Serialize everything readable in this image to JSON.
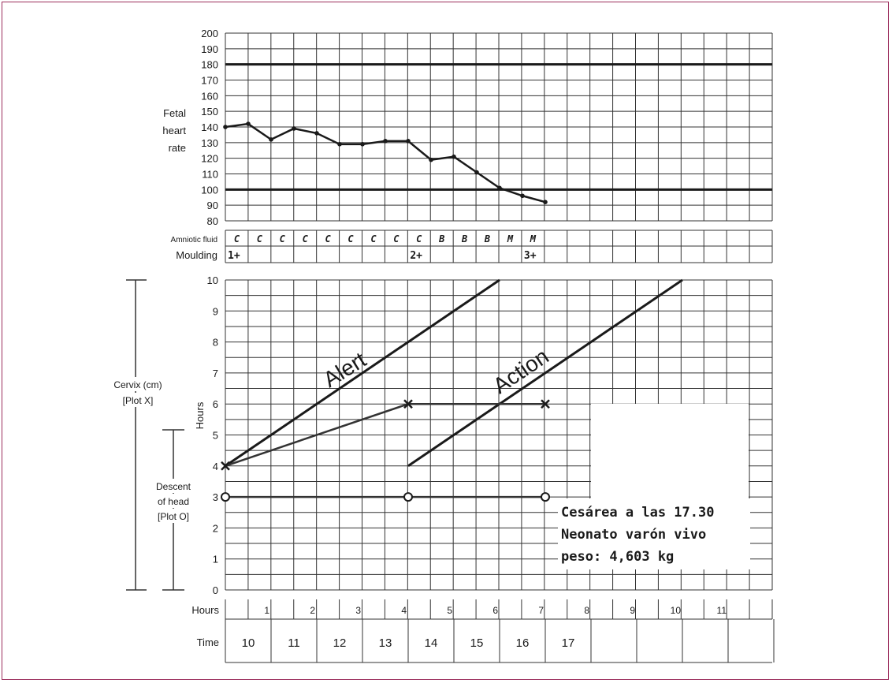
{
  "fhr_section": {
    "label_lines": [
      "Fetal",
      "heart",
      "rate"
    ],
    "y_ticks": [
      200,
      190,
      180,
      170,
      160,
      150,
      140,
      130,
      120,
      110,
      100,
      90,
      80
    ]
  },
  "amniotic": {
    "label": "Amniotic fluid",
    "values": [
      "C",
      "C",
      "C",
      "C",
      "C",
      "C",
      "C",
      "C",
      "C",
      "B",
      "B",
      "B",
      "M",
      "M"
    ]
  },
  "moulding": {
    "label": "Moulding",
    "entries": [
      {
        "slot": 0,
        "text": "1+"
      },
      {
        "slot": 8,
        "text": "2+"
      },
      {
        "slot": 13,
        "text": "3+"
      }
    ]
  },
  "cervix_section": {
    "cervix_label_lines": [
      "Cervix (cm)",
      "[Plot X]"
    ],
    "descent_label_lines": [
      "Descent",
      "of head",
      "[Plot O]"
    ],
    "hours_axis_label": "Hours",
    "y_ticks": [
      10,
      9,
      8,
      7,
      6,
      5,
      4,
      3,
      2,
      1,
      0
    ],
    "alert_label": "Alert",
    "action_label": "Action"
  },
  "hours_row": {
    "label": "Hours",
    "values": [
      1,
      2,
      3,
      4,
      5,
      6,
      7,
      8,
      9,
      10,
      11
    ]
  },
  "time_row": {
    "label": "Time",
    "values": [
      "10",
      "11",
      "12",
      "13",
      "14",
      "15",
      "16",
      "17",
      "",
      "",
      ""
    ]
  },
  "annotation": {
    "lines": [
      "Cesárea a las 17.30",
      "Neonato varón vivo",
      "peso: 4,603 kg"
    ]
  },
  "chart_data": [
    {
      "type": "line",
      "ylabel": "Fetal heart rate",
      "ylim": [
        80,
        200
      ],
      "x_unit": "hours",
      "reference_lines": [
        100,
        180
      ],
      "series": [
        {
          "x": [
            0,
            0.5,
            1,
            1.5,
            2,
            2.5,
            3,
            3.5,
            4,
            4.5,
            5,
            5.5,
            6,
            6.5,
            7
          ],
          "values": [
            140,
            142,
            132,
            139,
            136,
            129,
            129,
            131,
            131,
            119,
            121,
            111,
            101,
            96,
            92
          ]
        }
      ]
    },
    {
      "type": "line",
      "xlabel": "Hours",
      "ylabel": "Cervix (cm)",
      "ylim": [
        0,
        10
      ],
      "xlim": [
        0,
        12
      ],
      "alert_line": {
        "x": [
          0,
          6
        ],
        "y": [
          4,
          10
        ]
      },
      "action_line": {
        "x": [
          4,
          10
        ],
        "y": [
          4,
          10
        ]
      },
      "series": [
        {
          "marker": "X",
          "x": [
            0,
            4,
            7
          ],
          "values": [
            4,
            6,
            6
          ]
        },
        {
          "marker": "O",
          "x": [
            0,
            4,
            7
          ],
          "values": [
            3,
            3,
            3
          ]
        }
      ]
    }
  ]
}
